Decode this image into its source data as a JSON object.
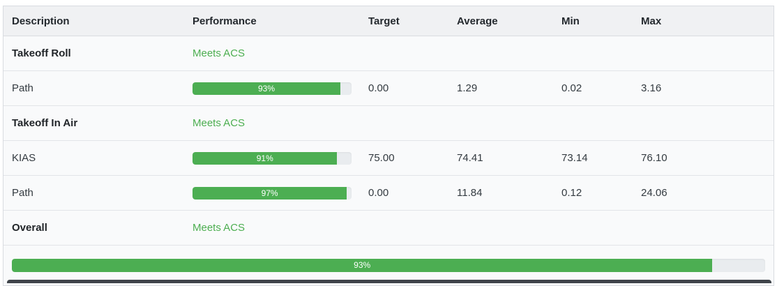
{
  "theme": {
    "accent_green": "#4cae50",
    "bar_fill": "#4cae52",
    "bar_track": "#e9ecef",
    "header_bg": "#f0f1f3",
    "row_bg": "#f9fafb",
    "border": "#d8dbe0"
  },
  "table": {
    "columns": [
      "Description",
      "Performance",
      "Target",
      "Average",
      "Min",
      "Max"
    ],
    "rows": [
      {
        "type": "section",
        "description": "Takeoff Roll",
        "performance": "Meets ACS"
      },
      {
        "type": "metric",
        "description": "Path",
        "percent": 93,
        "percent_label": "93%",
        "target": "0.00",
        "average": "1.29",
        "min": "0.02",
        "max": "3.16"
      },
      {
        "type": "section",
        "description": "Takeoff In Air",
        "performance": "Meets ACS"
      },
      {
        "type": "metric",
        "description": "KIAS",
        "percent": 91,
        "percent_label": "91%",
        "target": "75.00",
        "average": "74.41",
        "min": "73.14",
        "max": "76.10"
      },
      {
        "type": "metric",
        "description": "Path",
        "percent": 97,
        "percent_label": "97%",
        "target": "0.00",
        "average": "11.84",
        "min": "0.12",
        "max": "24.06"
      },
      {
        "type": "section",
        "description": "Overall",
        "performance": "Meets ACS"
      },
      {
        "type": "overall_bar",
        "percent": 93,
        "percent_label": "93%"
      }
    ]
  }
}
